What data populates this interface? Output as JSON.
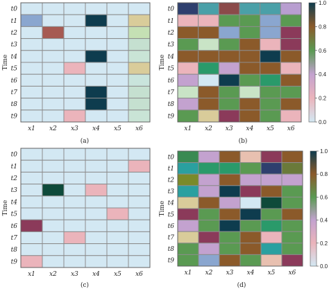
{
  "layout_note": "",
  "palette": {
    "0.0": "#d3e8f3",
    "0.2": "#ebb4bb",
    "0.4": "#c3a2cf",
    "0.6": "#5a9a52",
    "0.8": "#8b5a2a",
    "1.0": "#0e3c4e"
  },
  "chart_data": [
    {
      "panel": "a",
      "type": "heatmap",
      "caption": "(a)",
      "ylabel": "Time",
      "x_categories": [
        "x1",
        "x2",
        "x3",
        "x4",
        "x5",
        "x6"
      ],
      "y_categories": [
        "t0",
        "t1",
        "t2",
        "t3",
        "t4",
        "t5",
        "t6",
        "t7",
        "t8",
        "t9"
      ],
      "colorbar": false,
      "colors": [
        [
          "#d3e8f3",
          "#d3e8f3",
          "#d3e8f3",
          "#d3e8f3",
          "#d3e8f3",
          "#d3e8f3"
        ],
        [
          "#8aa6cf",
          "#d3e8f3",
          "#d3e8f3",
          "#0e3c4e",
          "#d3e8f3",
          "#d9cc9a"
        ],
        [
          "#d3e8f3",
          "#a65a52",
          "#d3e8f3",
          "#d3e8f3",
          "#d3e8f3",
          "#c5e0b4"
        ],
        [
          "#d3e8f3",
          "#d3e8f3",
          "#d3e8f3",
          "#d3e8f3",
          "#d3e8f3",
          "#c5e0d0"
        ],
        [
          "#d3e8f3",
          "#d3e8f3",
          "#d3e8f3",
          "#0e3c4e",
          "#d3e8f3",
          "#c9e4d6"
        ],
        [
          "#d3e8f3",
          "#d3e8f3",
          "#ebb4bb",
          "#d3e8f3",
          "#d3e8f3",
          "#d9cc9a"
        ],
        [
          "#d3e8f3",
          "#d3e8f3",
          "#d3e8f3",
          "#d3e8f3",
          "#d3e8f3",
          "#c9e4dc"
        ],
        [
          "#d3e8f3",
          "#d3e8f3",
          "#d3e8f3",
          "#0e3c4e",
          "#d3e8f3",
          "#c5e0d0"
        ],
        [
          "#d3e8f3",
          "#d3e8f3",
          "#d3e8f3",
          "#0e3c4e",
          "#d3e8f3",
          "#c5e0d0"
        ],
        [
          "#d3e8f3",
          "#d3e8f3",
          "#ebb4bb",
          "#d3e8f3",
          "#d3e8f3",
          "#c9e4d6"
        ]
      ]
    },
    {
      "panel": "b",
      "type": "heatmap",
      "caption": "(b)",
      "ylabel": "Time",
      "x_categories": [
        "x1",
        "x2",
        "x3",
        "x4",
        "x5",
        "x6"
      ],
      "y_categories": [
        "t0",
        "t1",
        "t2",
        "t3",
        "t4",
        "t5",
        "t6",
        "t7",
        "t8",
        "t9"
      ],
      "colorbar": true,
      "colorbar_ticks": [
        "0.0",
        "0.2",
        "0.4",
        "0.6",
        "0.8",
        "1.0"
      ],
      "colors": [
        [
          "#2e3f6e",
          "#4aa0a8",
          "#8b4a4a",
          "#4aa0a8",
          "#4aa0a8",
          "#b89ed0"
        ],
        [
          "#ebb4bb",
          "#ebb4bb",
          "#5a9a52",
          "#5a9a52",
          "#8aa6cf",
          "#5a9a52"
        ],
        [
          "#8b5a2a",
          "#8b5a2a",
          "#8aa6cf",
          "#5a9a52",
          "#8aa6cf",
          "#8b3a5a"
        ],
        [
          "#5a9a52",
          "#c9e4c6",
          "#5a9a52",
          "#8b5a2a",
          "#ebb4bb",
          "#8b3a5a"
        ],
        [
          "#8b5a2a",
          "#8b5a2a",
          "#8b5a2a",
          "#8b5a2a",
          "#0e3c4e",
          "#8b5a2a"
        ],
        [
          "#ebb4bb",
          "#2a9a6a",
          "#c3a2cf",
          "#8b5a2a",
          "#8b5a2a",
          "#ebb4bb"
        ],
        [
          "#c3a2cf",
          "#d3e8f3",
          "#0e3c4e",
          "#5a9a52",
          "#2a9a6a",
          "#8b5a2a"
        ],
        [
          "#c9e4c6",
          "#8b5a2a",
          "#5a9a52",
          "#c9e4c6",
          "#5a9a52",
          "#5a9a52"
        ],
        [
          "#c3a2cf",
          "#8b5a2a",
          "#5a9a52",
          "#8b5a2a",
          "#5a9a52",
          "#8b5a2a"
        ],
        [
          "#5a9a52",
          "#d9cc9a",
          "#8b3a5a",
          "#8b5a2a",
          "#5a9a52",
          "#ebb4bb"
        ]
      ]
    },
    {
      "panel": "c",
      "type": "heatmap",
      "caption": "(c)",
      "ylabel": "Time",
      "x_categories": [
        "x1",
        "x2",
        "x3",
        "x4",
        "x5",
        "x6"
      ],
      "y_categories": [
        "t0",
        "t1",
        "t2",
        "t3",
        "t4",
        "t5",
        "t6",
        "t7",
        "t8",
        "t9"
      ],
      "colorbar": false,
      "colors": [
        [
          "#d3e8f3",
          "#d3e8f3",
          "#d3e8f3",
          "#d3e8f3",
          "#d3e8f3",
          "#d3e8f3"
        ],
        [
          "#d3e8f3",
          "#d3e8f3",
          "#d3e8f3",
          "#d3e8f3",
          "#d3e8f3",
          "#ebb4bb"
        ],
        [
          "#d3e8f3",
          "#d3e8f3",
          "#d3e8f3",
          "#d3e8f3",
          "#d3e8f3",
          "#d3e8f3"
        ],
        [
          "#d3e8f3",
          "#0e4a3a",
          "#d3e8f3",
          "#ebb4bb",
          "#d3e8f3",
          "#d3e8f3"
        ],
        [
          "#d3e8f3",
          "#d3e8f3",
          "#d3e8f3",
          "#d3e8f3",
          "#d3e8f3",
          "#d3e8f3"
        ],
        [
          "#d3e8f3",
          "#d3e8f3",
          "#d3e8f3",
          "#d3e8f3",
          "#ebb4bb",
          "#d3e8f3"
        ],
        [
          "#8b3a5a",
          "#d3e8f3",
          "#d3e8f3",
          "#d3e8f3",
          "#d3e8f3",
          "#d3e8f3"
        ],
        [
          "#d3e8f3",
          "#d3e8f3",
          "#ebb4bb",
          "#d3e8f3",
          "#d3e8f3",
          "#d3e8f3"
        ],
        [
          "#d3e8f3",
          "#d3e8f3",
          "#d3e8f3",
          "#d3e8f3",
          "#d3e8f3",
          "#d3e8f3"
        ],
        [
          "#ebb4bb",
          "#d3e8f3",
          "#d3e8f3",
          "#d3e8f3",
          "#d3e8f3",
          "#d3e8f3"
        ]
      ]
    },
    {
      "panel": "d",
      "type": "heatmap",
      "caption": "(d)",
      "ylabel": "Time",
      "x_categories": [
        "x1",
        "x2",
        "x3",
        "x4",
        "x5",
        "x6"
      ],
      "y_categories": [
        "t0",
        "t1",
        "t2",
        "t3",
        "t4",
        "t5",
        "t6",
        "t7",
        "t8",
        "t9"
      ],
      "colorbar": true,
      "colorbar_ticks": [
        "0.0",
        "0.2",
        "0.4",
        "0.6",
        "0.8",
        "1.0"
      ],
      "colors": [
        [
          "#3a8a52",
          "#c3a2cf",
          "#8b5a2a",
          "#e8c0b0",
          "#8b3a5a",
          "#8b5a2a"
        ],
        [
          "#2aa0a0",
          "#2a9a6a",
          "#2a9a6a",
          "#5a9a52",
          "#2e3f6e",
          "#6a7a3a"
        ],
        [
          "#7a8a2a",
          "#c3a2cf",
          "#8b5a2a",
          "#c3a2cf",
          "#c3a2cf",
          "#c3a2cf"
        ],
        [
          "#2aa0a0",
          "#c3a2cf",
          "#0e3c4e",
          "#8b3a5a",
          "#8b5a2a",
          "#5a9a52"
        ],
        [
          "#d9cc9a",
          "#8b5a2a",
          "#c3a2cf",
          "#d3e8f3",
          "#0e4a3a",
          "#5a9a52"
        ],
        [
          "#8b3a5a",
          "#5a9a52",
          "#8b5a2a",
          "#0e3c4e",
          "#5a9a52",
          "#8b5a2a"
        ],
        [
          "#c3a2cf",
          "#5a9a52",
          "#0e3c4e",
          "#5a9a52",
          "#2a9a6a",
          "#5a9a52"
        ],
        [
          "#d9cc9a",
          "#8b3a5a",
          "#5a9a52",
          "#8b5a2a",
          "#ebb4bb",
          "#5a9a52"
        ],
        [
          "#5a9a52",
          "#c3a2cf",
          "#5a9a52",
          "#8b5a2a",
          "#2aa0a0",
          "#5a9a52"
        ],
        [
          "#5a9a52",
          "#8aa6cf",
          "#8b5a2a",
          "#5a9a52",
          "#e8c0b0",
          "#8b3a5a"
        ]
      ]
    }
  ]
}
